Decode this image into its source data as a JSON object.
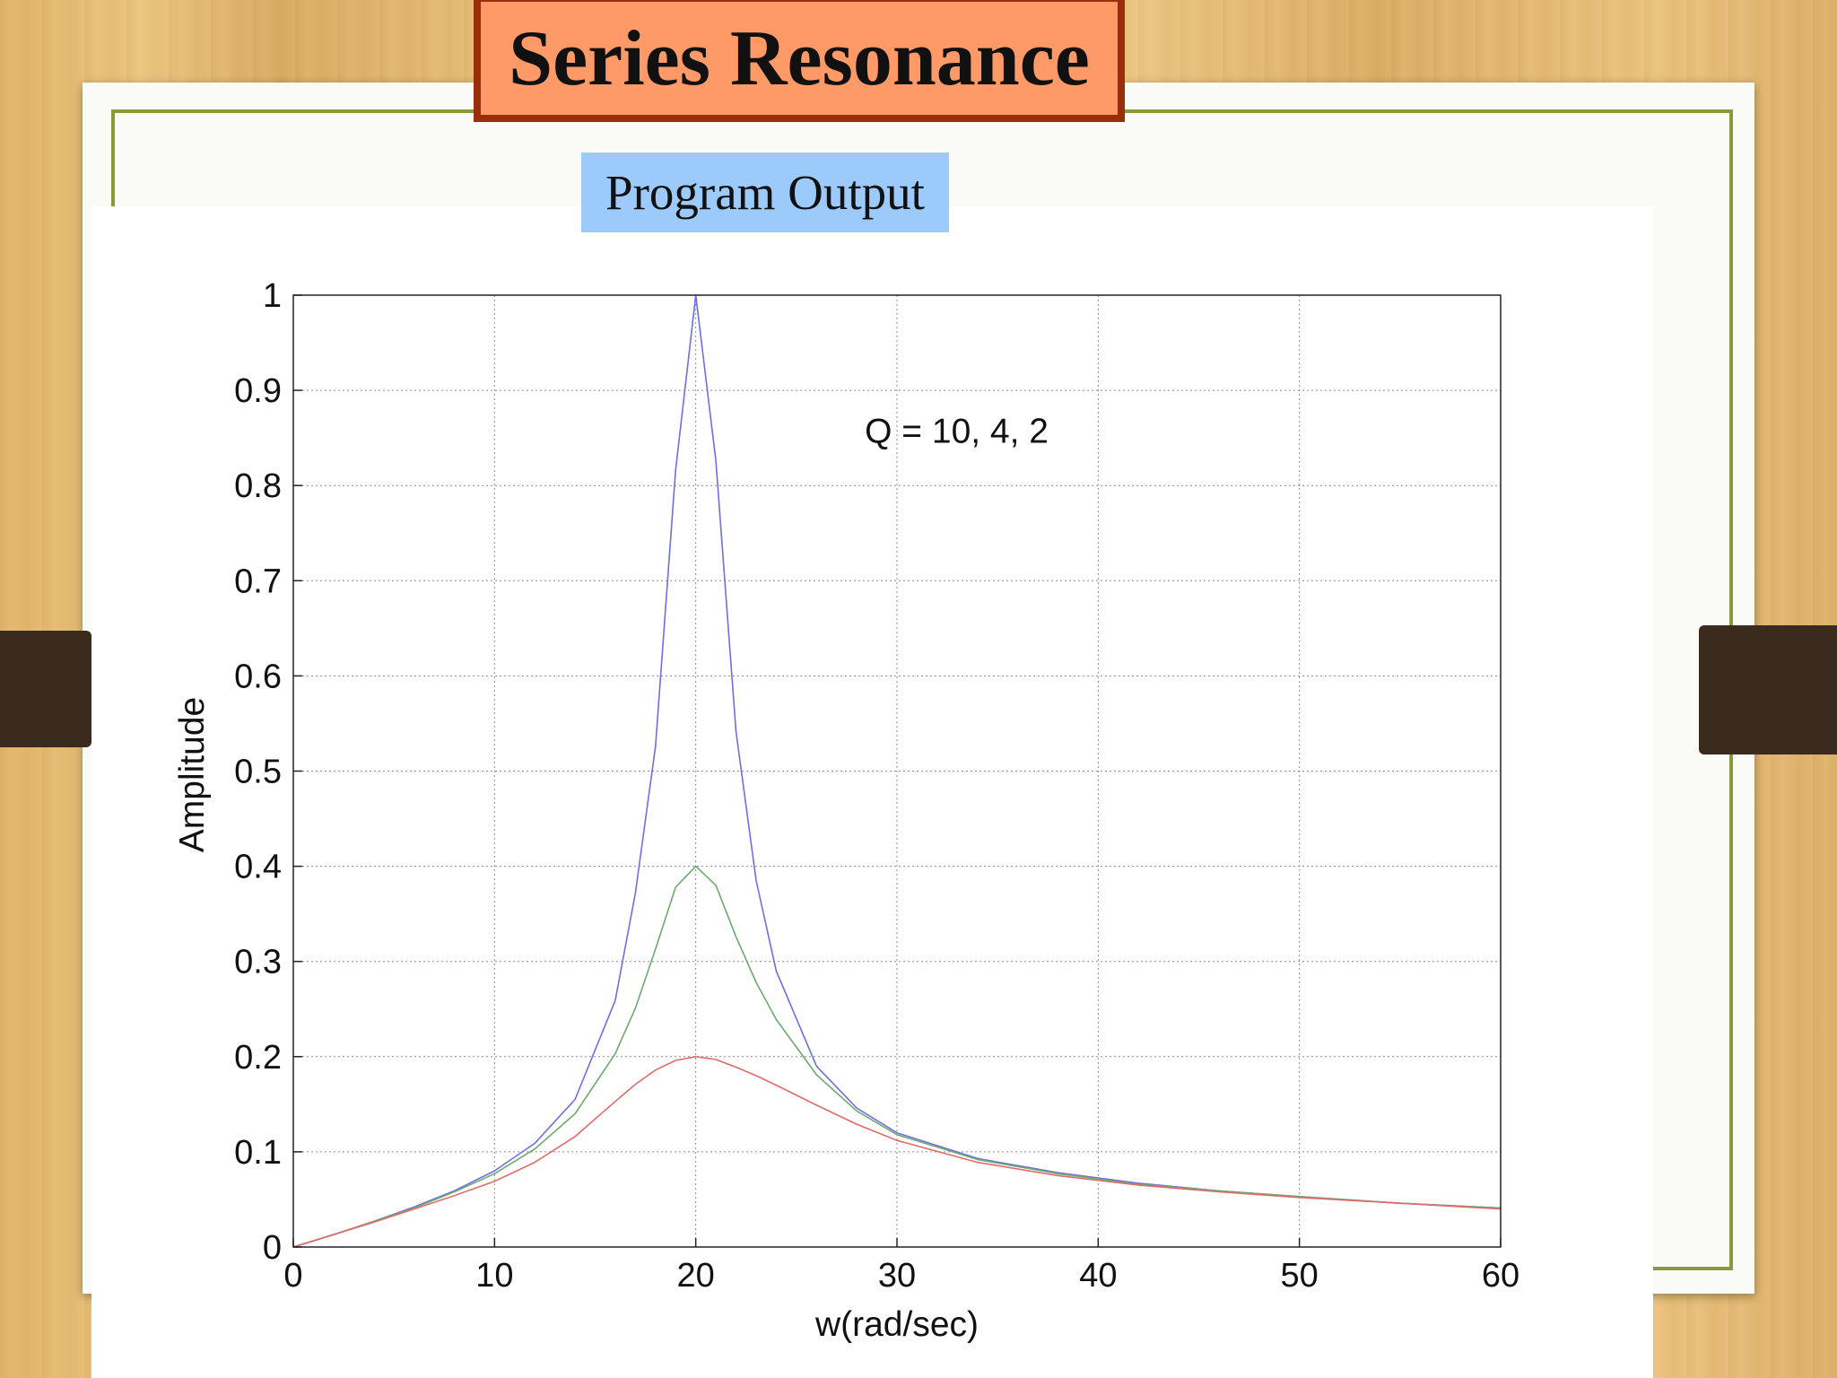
{
  "slide": {
    "title": "Series Resonance",
    "subtitle": "Program Output"
  },
  "colors": {
    "title_fill": "#fd9a68",
    "title_border": "#9b2e0a",
    "subtitle_fill": "#9ccbfb",
    "frame_green": "#8a9a3a",
    "strap": "#3b2a1e"
  },
  "chart_data": {
    "type": "line",
    "xlabel": "w(rad/sec)",
    "ylabel": "Amplitude",
    "annotation": "Q = 10, 4, 2",
    "xlim": [
      0,
      60
    ],
    "ylim": [
      0,
      1
    ],
    "xticks": [
      0,
      10,
      20,
      30,
      40,
      50,
      60
    ],
    "yticks": [
      0,
      0.1,
      0.2,
      0.3,
      0.4,
      0.5,
      0.6,
      0.7,
      0.8,
      0.9,
      1
    ],
    "ytick_labels": [
      "0",
      "0.1",
      "0.2",
      "0.3",
      "0.4",
      "0.5",
      "0.6",
      "0.7",
      "0.8",
      "0.9",
      "1"
    ],
    "grid": true,
    "x": [
      0,
      2,
      4,
      6,
      8,
      10,
      12,
      14,
      16,
      17,
      18,
      19,
      20,
      21,
      22,
      23,
      24,
      26,
      28,
      30,
      34,
      38,
      42,
      46,
      50,
      55,
      60
    ],
    "series": [
      {
        "color": "#6e6ee6",
        "values": [
          0,
          0.013,
          0.027,
          0.042,
          0.059,
          0.08,
          0.109,
          0.155,
          0.259,
          0.372,
          0.526,
          0.816,
          1.0,
          0.826,
          0.542,
          0.385,
          0.29,
          0.19,
          0.146,
          0.12,
          0.093,
          0.078,
          0.067,
          0.059,
          0.053,
          0.046,
          0.041
        ]
      },
      {
        "color": "#6daa6d",
        "values": [
          0,
          0.013,
          0.027,
          0.041,
          0.058,
          0.077,
          0.103,
          0.14,
          0.203,
          0.251,
          0.313,
          0.378,
          0.4,
          0.38,
          0.326,
          0.278,
          0.239,
          0.181,
          0.143,
          0.118,
          0.092,
          0.077,
          0.066,
          0.059,
          0.053,
          0.046,
          0.041
        ]
      },
      {
        "color": "#e26a6a",
        "values": [
          0,
          0.013,
          0.026,
          0.04,
          0.054,
          0.069,
          0.089,
          0.116,
          0.153,
          0.171,
          0.186,
          0.196,
          0.2,
          0.197,
          0.189,
          0.18,
          0.17,
          0.149,
          0.129,
          0.112,
          0.089,
          0.075,
          0.065,
          0.058,
          0.052,
          0.046,
          0.04
        ]
      }
    ]
  }
}
